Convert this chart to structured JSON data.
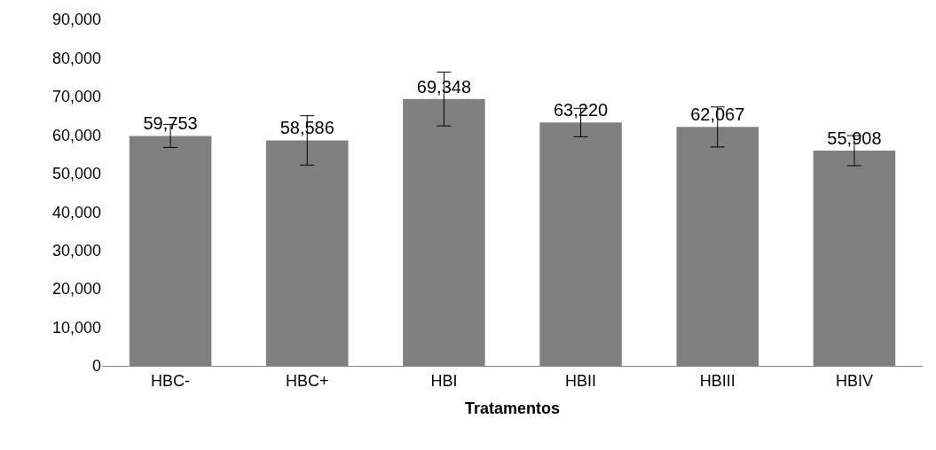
{
  "chart_data": {
    "type": "bar",
    "xlabel": "Tratamentos",
    "categories": [
      "HBC-",
      "HBC+",
      "HBI",
      "HBII",
      "HBIII",
      "HBIV"
    ],
    "values": [
      59753,
      58586,
      69348,
      63220,
      62067,
      55908
    ],
    "value_labels": [
      "59,753",
      "58,586",
      "69,348",
      "63,220",
      "62,067",
      "55,908"
    ],
    "errors": [
      3000,
      6400,
      7000,
      3700,
      5200,
      3900
    ],
    "color": "#808080",
    "ylim": [
      0,
      90000
    ],
    "yticks": [
      {
        "value": 0,
        "label": "0"
      },
      {
        "value": 10000,
        "label": "10,000"
      },
      {
        "value": 20000,
        "label": "20,000"
      },
      {
        "value": 30000,
        "label": "30,000"
      },
      {
        "value": 40000,
        "label": "40,000"
      },
      {
        "value": 50000,
        "label": "50,000"
      },
      {
        "value": 60000,
        "label": "60,000"
      },
      {
        "value": 70000,
        "label": "70,000"
      },
      {
        "value": 80000,
        "label": "80,000"
      },
      {
        "value": 90000,
        "label": "90,000"
      }
    ],
    "legend": false
  }
}
